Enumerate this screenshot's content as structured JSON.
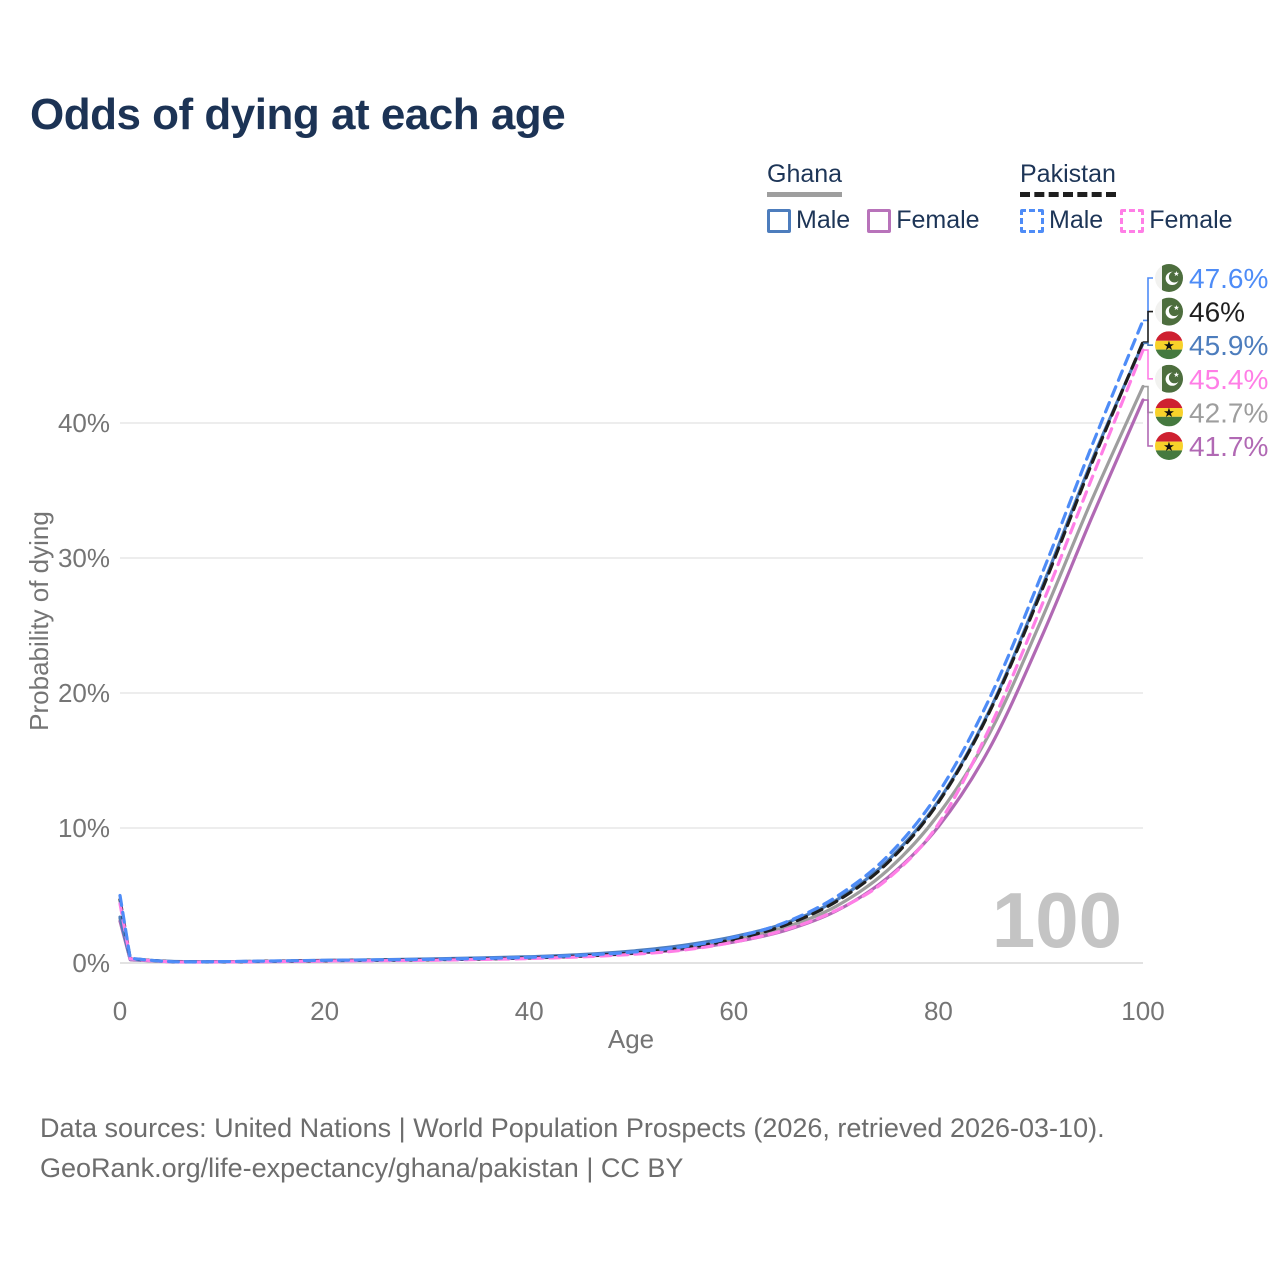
{
  "title": "Odds of dying at each age",
  "watermark_age": "100",
  "legend": {
    "groups": [
      {
        "country": "Ghana",
        "line_style": "solid",
        "underline_color": "#9e9e9e",
        "items": [
          {
            "label": "Male",
            "color": "#4d7dbd"
          },
          {
            "label": "Female",
            "color": "#b873ba"
          }
        ]
      },
      {
        "country": "Pakistan",
        "line_style": "dashed",
        "underline_color": "#1f1f1f",
        "items": [
          {
            "label": "Male",
            "color": "#4e8cf7"
          },
          {
            "label": "Female",
            "color": "#ff7ee6"
          }
        ]
      }
    ]
  },
  "axes": {
    "x": {
      "title": "Age",
      "ticks": [
        {
          "label": "0",
          "value": 0
        },
        {
          "label": "20",
          "value": 20
        },
        {
          "label": "40",
          "value": 40
        },
        {
          "label": "60",
          "value": 60
        },
        {
          "label": "80",
          "value": 80
        },
        {
          "label": "100",
          "value": 100
        }
      ]
    },
    "y": {
      "title": "Probability of dying",
      "ticks": [
        {
          "label": "0%",
          "value": 0
        },
        {
          "label": "10%",
          "value": 10
        },
        {
          "label": "20%",
          "value": 20
        },
        {
          "label": "30%",
          "value": 30
        },
        {
          "label": "40%",
          "value": 40
        }
      ]
    }
  },
  "chart_data": {
    "type": "line",
    "title": "Odds of dying at each age",
    "xlabel": "Age",
    "ylabel": "Probability of dying",
    "xlim": [
      0,
      100
    ],
    "ylim_pct": [
      0,
      48
    ],
    "grid": "horizontal",
    "legend_position": "top-right",
    "x": [
      0,
      1,
      5,
      10,
      15,
      20,
      25,
      30,
      35,
      40,
      45,
      50,
      55,
      60,
      65,
      70,
      75,
      80,
      85,
      90,
      95,
      100
    ],
    "series": [
      {
        "name": "Ghana Total",
        "country": "ghana",
        "sex": "total",
        "style": "solid",
        "color": "#9e9e9e",
        "values": [
          3.3,
          0.26,
          0.11,
          0.09,
          0.12,
          0.17,
          0.21,
          0.26,
          0.33,
          0.42,
          0.56,
          0.78,
          1.15,
          1.75,
          2.65,
          4.2,
          6.85,
          11.0,
          17.0,
          25.3,
          34.3,
          42.7
        ],
        "end_label": "42.7%"
      },
      {
        "name": "Ghana Female",
        "country": "ghana",
        "sex": "female",
        "style": "solid",
        "color": "#b169b4",
        "values": [
          3.1,
          0.24,
          0.1,
          0.08,
          0.11,
          0.15,
          0.19,
          0.23,
          0.29,
          0.37,
          0.5,
          0.7,
          1.0,
          1.55,
          2.4,
          3.85,
          6.3,
          10.1,
          15.9,
          24.0,
          33.0,
          41.7
        ],
        "end_label": "41.7%"
      },
      {
        "name": "Ghana Male",
        "country": "ghana",
        "sex": "male",
        "style": "solid",
        "color": "#4d7dbd",
        "values": [
          3.4,
          0.28,
          0.12,
          0.1,
          0.14,
          0.19,
          0.24,
          0.3,
          0.37,
          0.47,
          0.62,
          0.88,
          1.3,
          1.95,
          2.95,
          4.65,
          7.55,
          12.0,
          18.7,
          27.6,
          37.2,
          45.9
        ],
        "end_label": "45.9%"
      },
      {
        "name": "Pakistan Total",
        "country": "pakistan",
        "sex": "total",
        "style": "dashed",
        "color": "#1f1f1f",
        "values": [
          4.7,
          0.33,
          0.1,
          0.09,
          0.13,
          0.18,
          0.2,
          0.24,
          0.3,
          0.38,
          0.52,
          0.73,
          1.1,
          1.75,
          2.8,
          4.55,
          7.4,
          11.9,
          18.6,
          27.4,
          37.0,
          46.0
        ],
        "end_label": "46%"
      },
      {
        "name": "Pakistan Female",
        "country": "pakistan",
        "sex": "female",
        "style": "dashed",
        "color": "#ff7ee6",
        "values": [
          4.4,
          0.3,
          0.09,
          0.08,
          0.11,
          0.15,
          0.17,
          0.2,
          0.26,
          0.33,
          0.45,
          0.64,
          0.95,
          1.55,
          2.45,
          3.9,
          6.2,
          10.3,
          17.4,
          26.3,
          35.9,
          45.4
        ],
        "end_label": "45.4%"
      },
      {
        "name": "Pakistan Male",
        "country": "pakistan",
        "sex": "male",
        "style": "dashed",
        "color": "#4e8cf7",
        "values": [
          5.0,
          0.35,
          0.1,
          0.1,
          0.15,
          0.2,
          0.23,
          0.27,
          0.33,
          0.42,
          0.57,
          0.8,
          1.2,
          1.9,
          3.0,
          4.9,
          7.9,
          12.6,
          19.6,
          28.6,
          38.3,
          47.6
        ],
        "end_label": "47.6%"
      }
    ]
  },
  "end_labels": [
    {
      "text": "47.6%",
      "value": 47.6,
      "flag": "pakistan",
      "color": "#4e8cf7"
    },
    {
      "text": "46%",
      "value": 46.0,
      "flag": "pakistan",
      "color": "#1f1f1f"
    },
    {
      "text": "45.9%",
      "value": 45.9,
      "flag": "ghana",
      "color": "#4d7dbd"
    },
    {
      "text": "45.4%",
      "value": 45.4,
      "flag": "pakistan",
      "color": "#ff7ee6"
    },
    {
      "text": "42.7%",
      "value": 42.7,
      "flag": "ghana",
      "color": "#9e9e9e"
    },
    {
      "text": "41.7%",
      "value": 41.7,
      "flag": "ghana",
      "color": "#b169b4"
    }
  ],
  "colors": {
    "title_text": "#1c3355",
    "axis_text": "#757575",
    "gridline": "#e7e7e7",
    "baseline": "#d9d9d9",
    "watermark": "#c4c4c4",
    "footer_text": "#6d6d6d"
  },
  "footer": {
    "line1": "Data sources: United Nations | World Population Prospects (2026, retrieved 2026-03-10).",
    "line2": "GeoRank.org/life-expectancy/ghana/pakistan | CC BY"
  }
}
